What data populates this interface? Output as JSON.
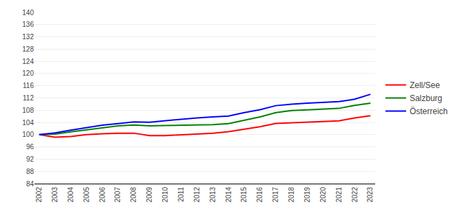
{
  "chart_data": {
    "type": "line",
    "x": [
      2002,
      2003,
      2004,
      2005,
      2006,
      2007,
      2008,
      2009,
      2010,
      2011,
      2012,
      2013,
      2014,
      2015,
      2016,
      2017,
      2018,
      2019,
      2020,
      2021,
      2022,
      2023
    ],
    "series": [
      {
        "name": "Zell/See",
        "color": "#ff0000",
        "values": [
          100.0,
          99.2,
          99.4,
          100.0,
          100.3,
          100.5,
          100.5,
          99.7,
          99.7,
          100.0,
          100.2,
          100.5,
          101.0,
          101.8,
          102.6,
          103.7,
          103.9,
          104.1,
          104.2,
          104.5,
          105.5,
          106.2
        ]
      },
      {
        "name": "Salzburg",
        "color": "#008000",
        "values": [
          100.0,
          100.2,
          100.9,
          101.6,
          102.3,
          102.9,
          103.2,
          102.9,
          103.0,
          103.1,
          103.1,
          103.3,
          103.6,
          104.7,
          105.8,
          107.2,
          107.9,
          108.1,
          108.3,
          108.6,
          109.6,
          110.3
        ]
      },
      {
        "name": "Österreich",
        "color": "#0000ff",
        "values": [
          100.0,
          100.6,
          101.5,
          102.3,
          103.1,
          103.6,
          104.2,
          104.1,
          104.6,
          105.1,
          105.5,
          105.8,
          106.1,
          107.2,
          108.2,
          109.5,
          110.0,
          110.3,
          110.5,
          110.8,
          111.6,
          113.2
        ]
      }
    ],
    "xlim": [
      2001.7,
      2023.3
    ],
    "xticks": [
      2002,
      2003,
      2004,
      2005,
      2006,
      2007,
      2008,
      2009,
      2010,
      2011,
      2012,
      2013,
      2014,
      2015,
      2016,
      2017,
      2018,
      2019,
      2020,
      2021,
      2022,
      2023
    ],
    "ylim": [
      84,
      140
    ],
    "yticks": [
      84,
      88,
      92,
      96,
      100,
      104,
      108,
      112,
      116,
      120,
      124,
      128,
      132,
      136,
      140
    ],
    "grid": "y",
    "legend": "right"
  }
}
